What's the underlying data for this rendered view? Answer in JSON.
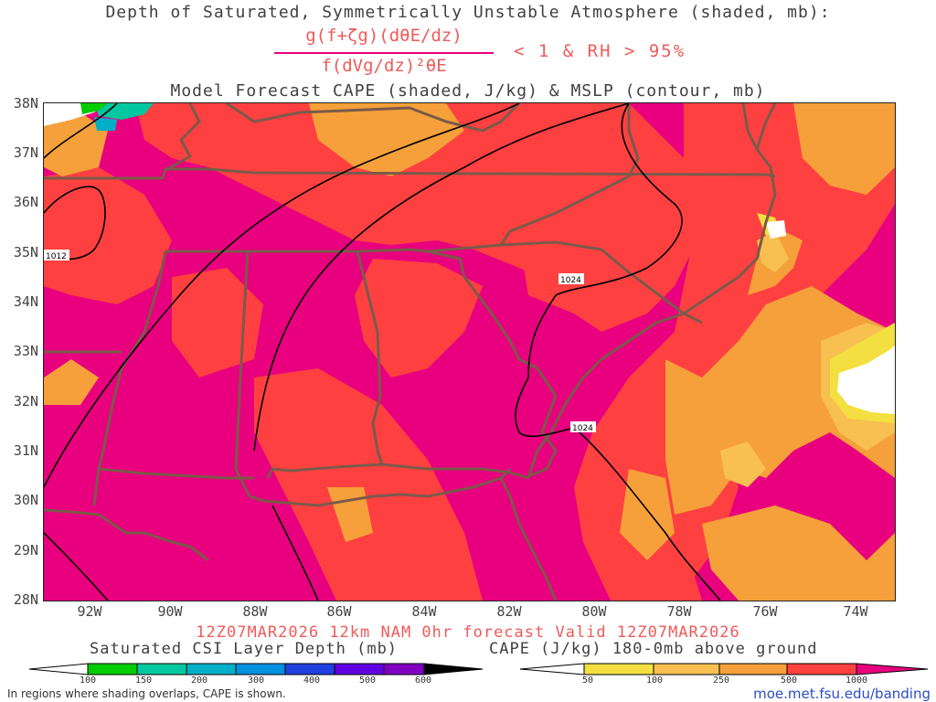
{
  "header": {
    "title_line1": "Depth of Saturated, Symmetrically Unstable Atmosphere (shaded, mb):",
    "formula_numerator": "g(f+ζg)(dθE/dz)",
    "formula_denominator": "f(dVg/dz)²θE",
    "formula_condition": "< 1 & RH > 95%",
    "title_line3": "Model Forecast CAPE (shaded, J/kg) & MSLP (contour, mb)"
  },
  "map": {
    "lat_labels": [
      "38N",
      "37N",
      "36N",
      "35N",
      "34N",
      "33N",
      "32N",
      "31N",
      "30N",
      "29N",
      "28N"
    ],
    "lon_labels": [
      "92W",
      "90W",
      "88W",
      "86W",
      "84W",
      "82W",
      "80W",
      "78W",
      "76W",
      "74W"
    ],
    "isobar_labels": [
      "1012",
      "1024",
      "1024"
    ],
    "colors": {
      "background": "#e8007e",
      "cape_250_500": "#f5a03a",
      "cape_500_1000": "#ff4040",
      "cape_100_250": "#f7c050",
      "cape_50_100": "#f3e040",
      "csi_150_200": "#00c8a0",
      "csi_100_150": "#00cc00",
      "state_borders": "#7a5a4a",
      "isobars": "#000000"
    }
  },
  "footer": {
    "valid_line": "12Z07MAR2026 12km NAM 0hr forecast Valid 12Z07MAR2026",
    "csi_colorbar_title": "Saturated CSI Layer Depth (mb)",
    "csi_ticks": [
      "100",
      "150",
      "200",
      "300",
      "400",
      "500",
      "600"
    ],
    "csi_colors": [
      "#ffffff",
      "#00cc00",
      "#00c8a0",
      "#00b0c8",
      "#0090e0",
      "#2040e0",
      "#6000e0",
      "#8000c0",
      "#000000"
    ],
    "cape_colorbar_title": "CAPE (J/kg) 180-0mb above ground",
    "cape_ticks": [
      "50",
      "100",
      "250",
      "500",
      "1000"
    ],
    "cape_colors": [
      "#ffffff",
      "#f3e040",
      "#f7c050",
      "#f5a03a",
      "#f07030",
      "#ff4040",
      "#e8007e"
    ],
    "note": "In regions where shading overlaps, CAPE is shown.",
    "url": "moe.met.fsu.edu/banding"
  }
}
